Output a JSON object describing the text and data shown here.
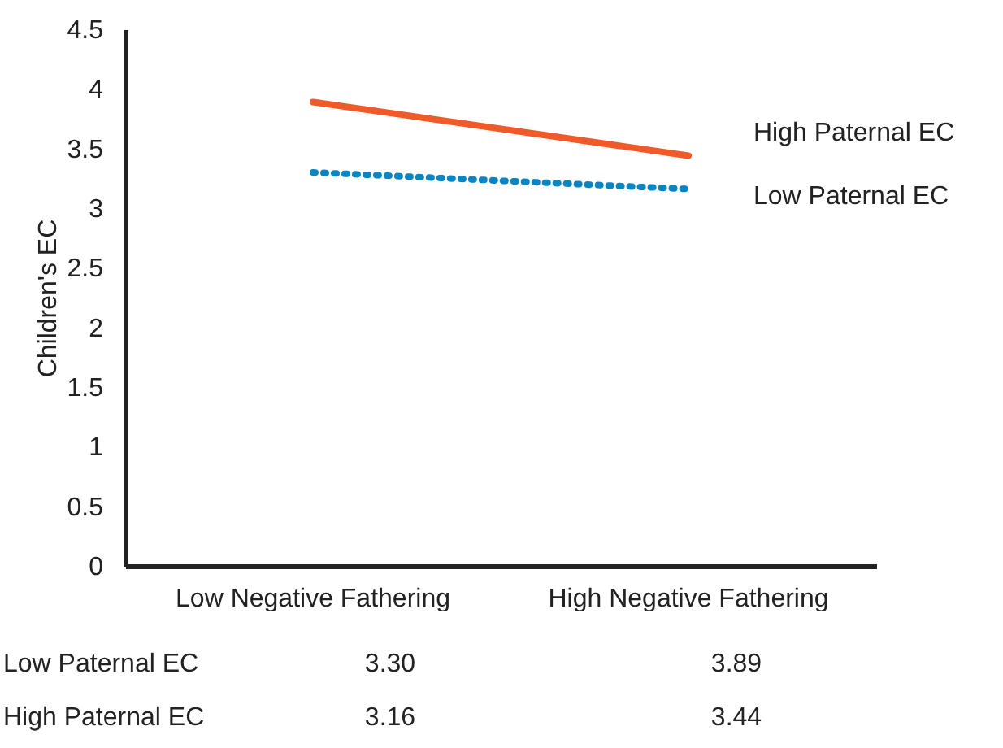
{
  "chart_data": {
    "type": "line",
    "ylabel": "Children's EC",
    "categories": [
      "Low Negative Fathering",
      "High Negative Fathering"
    ],
    "series": [
      {
        "name": "High Paternal EC",
        "color": "#f05a28",
        "line_style": "solid",
        "values": [
          3.89,
          3.44
        ]
      },
      {
        "name": "Low Paternal EC",
        "color": "#0a85c2",
        "line_style": "dotted",
        "values": [
          3.3,
          3.16
        ]
      }
    ],
    "ylim": [
      0,
      4.5
    ],
    "yticks": [
      0,
      0.5,
      1,
      1.5,
      2,
      2.5,
      3,
      3.5,
      4,
      4.5
    ],
    "grid": false,
    "legend": "right",
    "annotations": [
      "Low Paternal EC",
      "3.30",
      "3.89",
      "High Paternal EC",
      "3.16",
      "3.44"
    ]
  }
}
